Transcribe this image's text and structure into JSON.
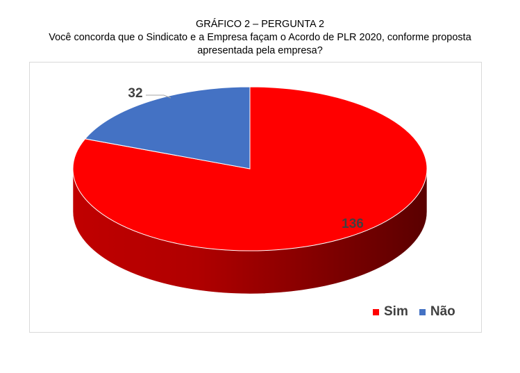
{
  "heading": {
    "line1": "GRÁFICO 2 – PERGUNTA 2",
    "line2": "Você concorda que o Sindicato e a Empresa façam o Acordo de PLR 2020, conforme proposta",
    "line3": "apresentada pela empresa?"
  },
  "chart_data": {
    "type": "pie",
    "style": "3d",
    "title": "",
    "categories": [
      "Sim",
      "Não"
    ],
    "values": [
      136,
      32
    ],
    "colors": [
      "#ff0000",
      "#4472c4"
    ],
    "data_labels": [
      "136",
      "32"
    ],
    "legend": "bottom-right",
    "start": "top, clockwise"
  }
}
